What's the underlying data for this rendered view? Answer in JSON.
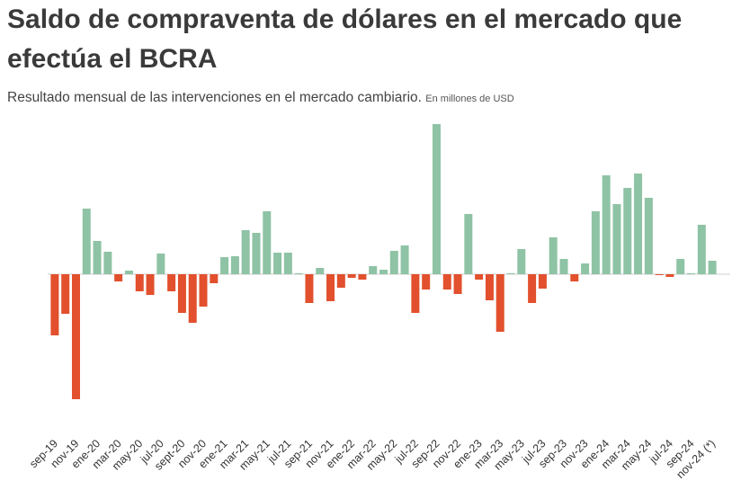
{
  "chart_data": {
    "type": "bar",
    "title": "Saldo de compraventa de dólares en el mercado que efectúa el BCRA",
    "subtitle": "Resultado  mensual de las intervenciones en el mercado cambiario.",
    "unit": "En millones de USD",
    "categories": [
      "sep-19",
      null,
      "nov-19",
      null,
      "ene-20",
      null,
      "mar-20",
      null,
      "may-20",
      null,
      "jul-20",
      null,
      "sept-20",
      null,
      "nov-20",
      null,
      "ene-21",
      null,
      "mar-21",
      null,
      "may-21",
      null,
      "jul-21",
      null,
      "sep-21",
      null,
      "nov-21",
      null,
      "ene-22",
      null,
      "mar-22",
      null,
      "may-22",
      null,
      "jul-22",
      null,
      "sep-22",
      null,
      "nov-22",
      null,
      "ene-23",
      null,
      "mar-23",
      null,
      "may-23",
      null,
      "jul-23",
      null,
      "sep-23",
      null,
      "nov-23",
      null,
      "ene-24",
      null,
      "mar-24",
      null,
      "may-24",
      null,
      "jul-24",
      null,
      "sep-24",
      null,
      "nov-24 (*)"
    ],
    "values": [
      -2040,
      -1320,
      -4170,
      2190,
      1110,
      750,
      -240,
      120,
      -570,
      -690,
      690,
      -570,
      -1290,
      -1620,
      -1080,
      -300,
      570,
      600,
      1470,
      1380,
      2100,
      720,
      720,
      30,
      -960,
      210,
      -900,
      -450,
      -120,
      -180,
      270,
      150,
      780,
      960,
      -1290,
      -510,
      5010,
      -510,
      -660,
      2010,
      -180,
      -870,
      -1920,
      30,
      840,
      -960,
      -480,
      1230,
      510,
      -240,
      360,
      2100,
      3300,
      2340,
      2880,
      3360,
      2550,
      -30,
      -90,
      510,
      30,
      1650,
      450
    ],
    "colors": {
      "positive": "#8ec3a5",
      "negative": "#e2502d"
    },
    "ylim": [
      -4500,
      5400
    ]
  }
}
